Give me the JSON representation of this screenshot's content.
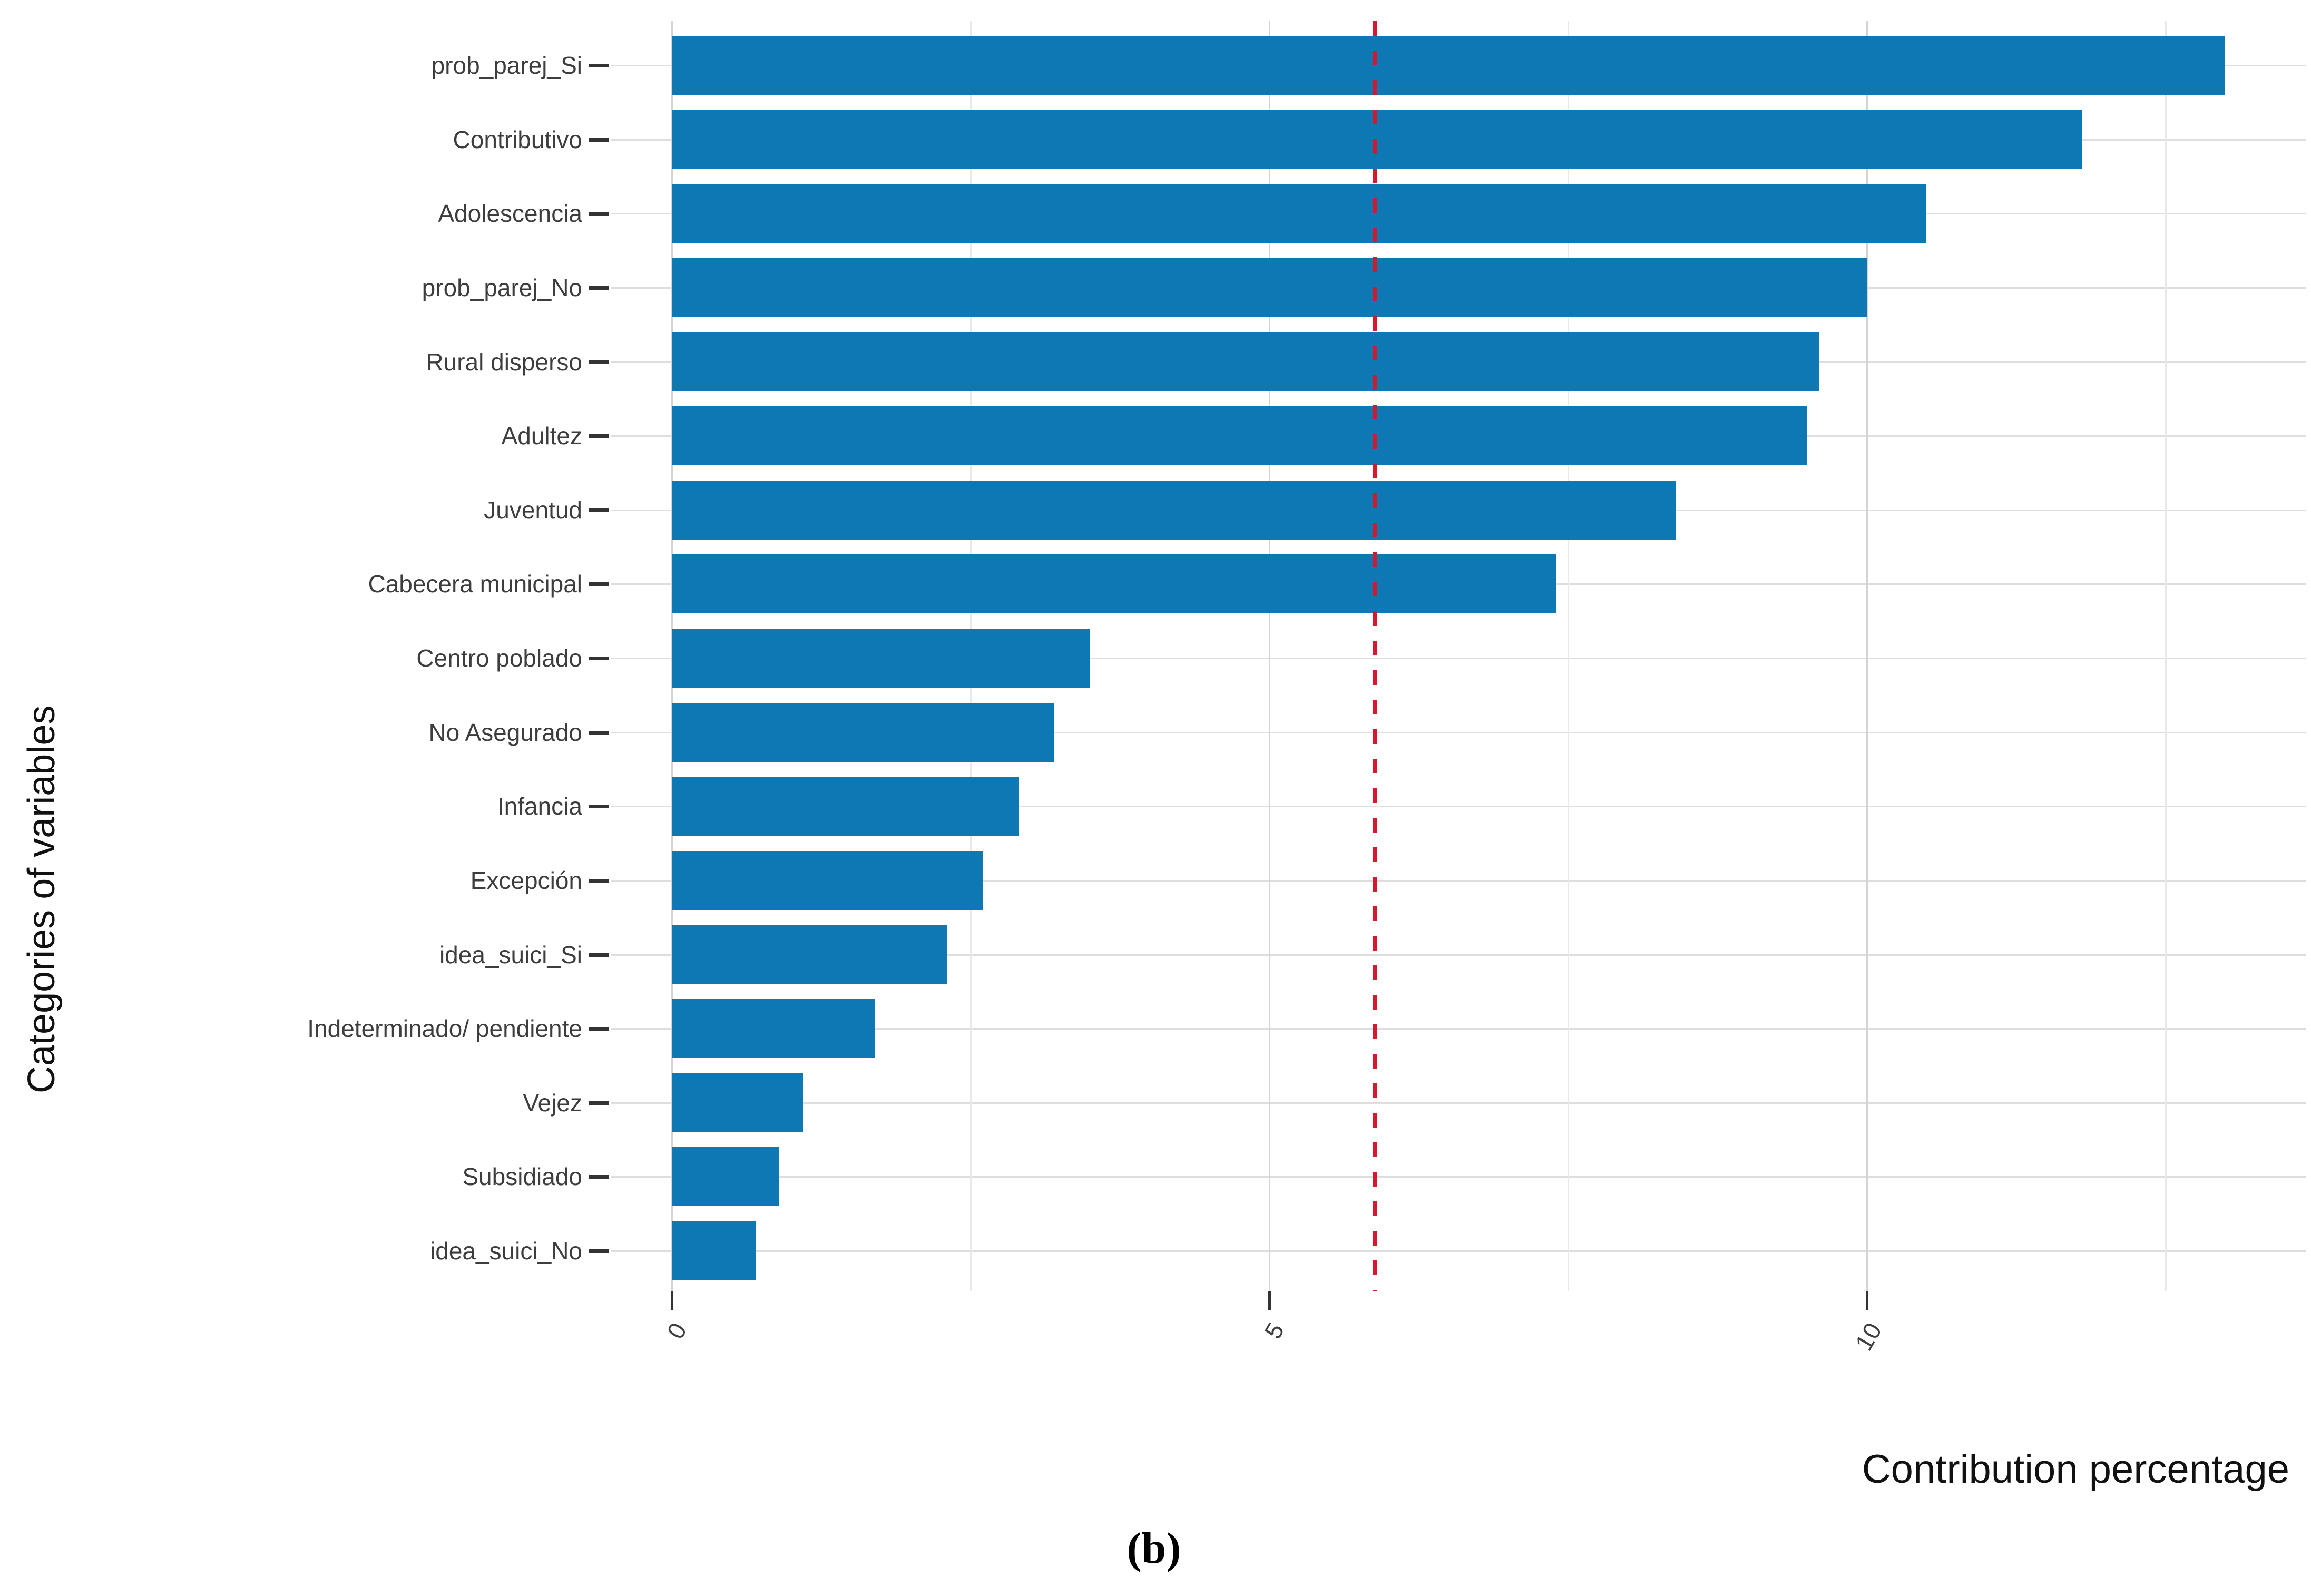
{
  "figure": {
    "caption": "(b)",
    "background_color": "#ffffff"
  },
  "chart_data": {
    "type": "bar",
    "orientation": "horizontal",
    "title": "",
    "xlabel": "Contribution percentage",
    "ylabel": "Categories of variables",
    "categories": [
      "prob_parej_Si",
      "Contributivo",
      "Adolescencia",
      "prob_parej_No",
      "Rural disperso",
      "Adultez",
      "Juventud",
      "Cabecera municipal",
      "Centro poblado",
      "No Asegurado",
      "Infancia",
      "Excepción",
      "idea_suici_Si",
      "Indeterminado/ pendiente",
      "Vejez",
      "Subsidiado",
      "idea_suici_No"
    ],
    "values": [
      13.0,
      11.8,
      10.5,
      10.0,
      9.6,
      9.5,
      8.4,
      7.4,
      3.5,
      3.2,
      2.9,
      2.6,
      2.3,
      1.7,
      1.1,
      0.9,
      0.7
    ],
    "x_ticks": [
      0,
      5,
      10
    ],
    "x_minor_ticks": [
      2.5,
      7.5,
      12.5
    ],
    "xlim": [
      -0.5,
      13.7
    ],
    "reference_line": {
      "value": 5.88,
      "style": "dashed"
    },
    "grid": "major+minor",
    "legend": "none"
  },
  "colors": {
    "bar_fill": "#0e78b4",
    "reference_line": "#d6182c",
    "grid_major": "#d4d4d4",
    "grid_minor": "#e9e9e9",
    "grid_horizontal": "#dedede",
    "axis_text": "#3d3d3d",
    "axis_title": "#111111",
    "tick_mark": "#333333"
  }
}
